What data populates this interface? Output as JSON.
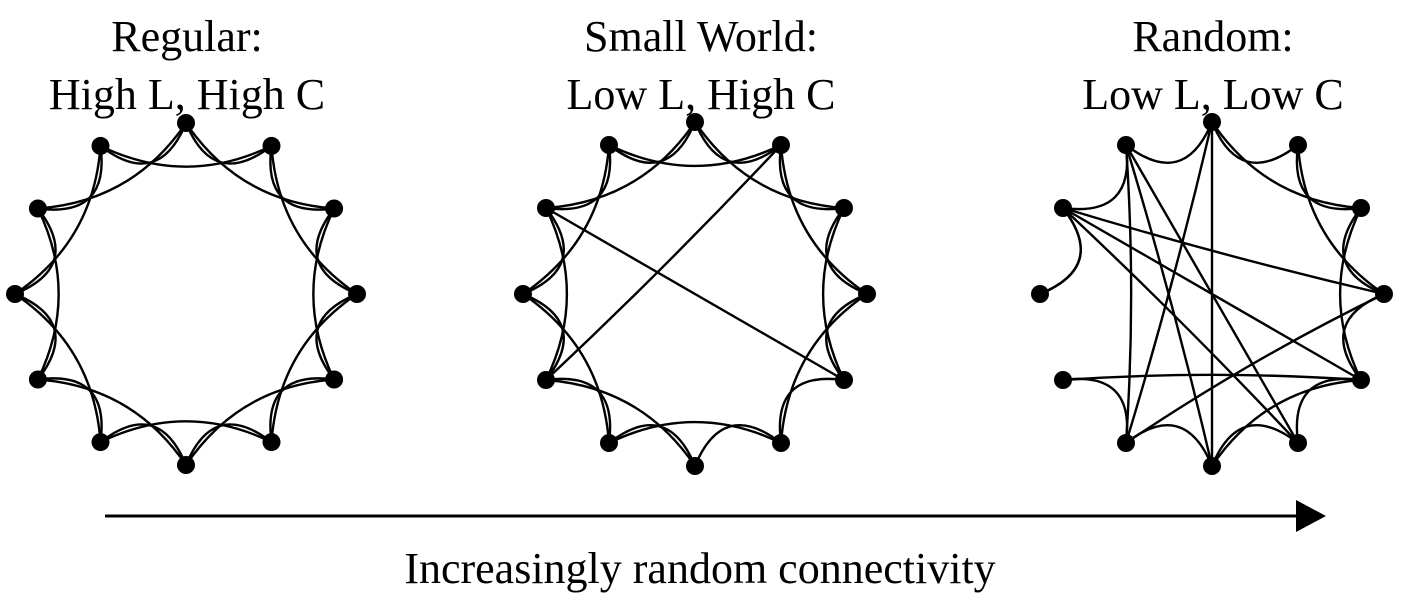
{
  "panels": [
    {
      "title_line1": "Regular:",
      "title_line2": "High L, High C",
      "edges": [
        [
          0,
          1
        ],
        [
          1,
          2
        ],
        [
          2,
          3
        ],
        [
          3,
          4
        ],
        [
          4,
          5
        ],
        [
          5,
          6
        ],
        [
          6,
          7
        ],
        [
          7,
          8
        ],
        [
          8,
          9
        ],
        [
          9,
          10
        ],
        [
          10,
          11
        ],
        [
          11,
          0
        ],
        [
          0,
          2
        ],
        [
          1,
          3
        ],
        [
          2,
          4
        ],
        [
          3,
          5
        ],
        [
          4,
          6
        ],
        [
          5,
          7
        ],
        [
          6,
          8
        ],
        [
          7,
          9
        ],
        [
          8,
          10
        ],
        [
          9,
          11
        ],
        [
          10,
          0
        ],
        [
          11,
          1
        ]
      ]
    },
    {
      "title_line1": "Small World:",
      "title_line2": "Low L, High C",
      "edges": [
        [
          0,
          1
        ],
        [
          1,
          2
        ],
        [
          2,
          3
        ],
        [
          3,
          4
        ],
        [
          4,
          5
        ],
        [
          5,
          6
        ],
        [
          6,
          7
        ],
        [
          7,
          8
        ],
        [
          8,
          9
        ],
        [
          9,
          10
        ],
        [
          10,
          11
        ],
        [
          11,
          0
        ],
        [
          0,
          2
        ],
        [
          1,
          3
        ],
        [
          2,
          4
        ],
        [
          3,
          5
        ],
        [
          5,
          7
        ],
        [
          6,
          8
        ],
        [
          7,
          9
        ],
        [
          8,
          10
        ],
        [
          9,
          11
        ],
        [
          10,
          0
        ],
        [
          11,
          1
        ],
        [
          10,
          4
        ],
        [
          1,
          8
        ]
      ]
    },
    {
      "title_line1": "Random:",
      "title_line2": "Low L, Low C",
      "edges": [
        [
          0,
          1
        ],
        [
          1,
          2
        ],
        [
          2,
          3
        ],
        [
          3,
          4
        ],
        [
          4,
          5
        ],
        [
          5,
          6
        ],
        [
          6,
          7
        ],
        [
          7,
          8
        ],
        [
          9,
          10
        ],
        [
          10,
          11
        ],
        [
          11,
          0
        ],
        [
          0,
          2
        ],
        [
          1,
          3
        ],
        [
          2,
          4
        ],
        [
          0,
          6
        ],
        [
          0,
          7
        ],
        [
          11,
          6
        ],
        [
          11,
          5
        ],
        [
          10,
          3
        ],
        [
          10,
          4
        ],
        [
          10,
          5
        ],
        [
          8,
          4
        ],
        [
          7,
          3
        ],
        [
          4,
          6
        ],
        [
          7,
          11
        ],
        [
          9,
          10
        ]
      ]
    }
  ],
  "caption": "Increasingly random connectivity",
  "colors": {
    "ink": "#000000",
    "background": "#ffffff"
  },
  "node_count": 12
}
